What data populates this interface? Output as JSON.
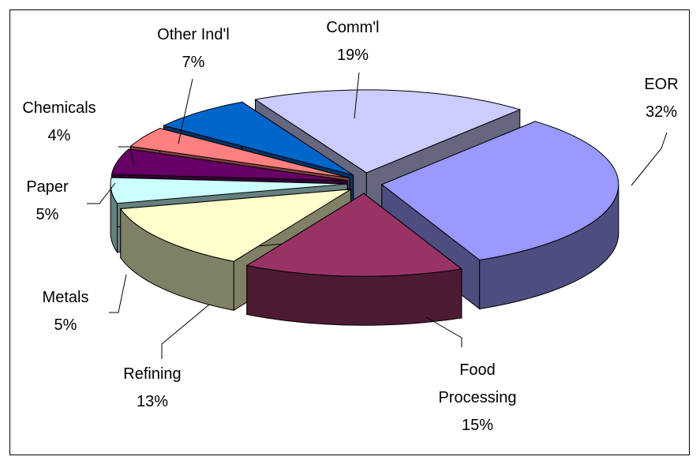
{
  "chart_data": {
    "type": "pie",
    "categories": [
      "Comm'l",
      "EOR",
      "Food Processing",
      "Refining",
      "Metals",
      "Paper",
      "Chemicals",
      "Other Ind'l"
    ],
    "values": [
      19,
      32,
      15,
      13,
      5,
      5,
      4,
      7
    ],
    "value_labels": [
      "19%",
      "32%",
      "15%",
      "13%",
      "5%",
      "5%",
      "4%",
      "7%"
    ],
    "colors": [
      "#ccccff",
      "#9999ff",
      "#993366",
      "#ffffcc",
      "#ccffff",
      "#660066",
      "#ff8080",
      "#0066cc"
    ]
  }
}
